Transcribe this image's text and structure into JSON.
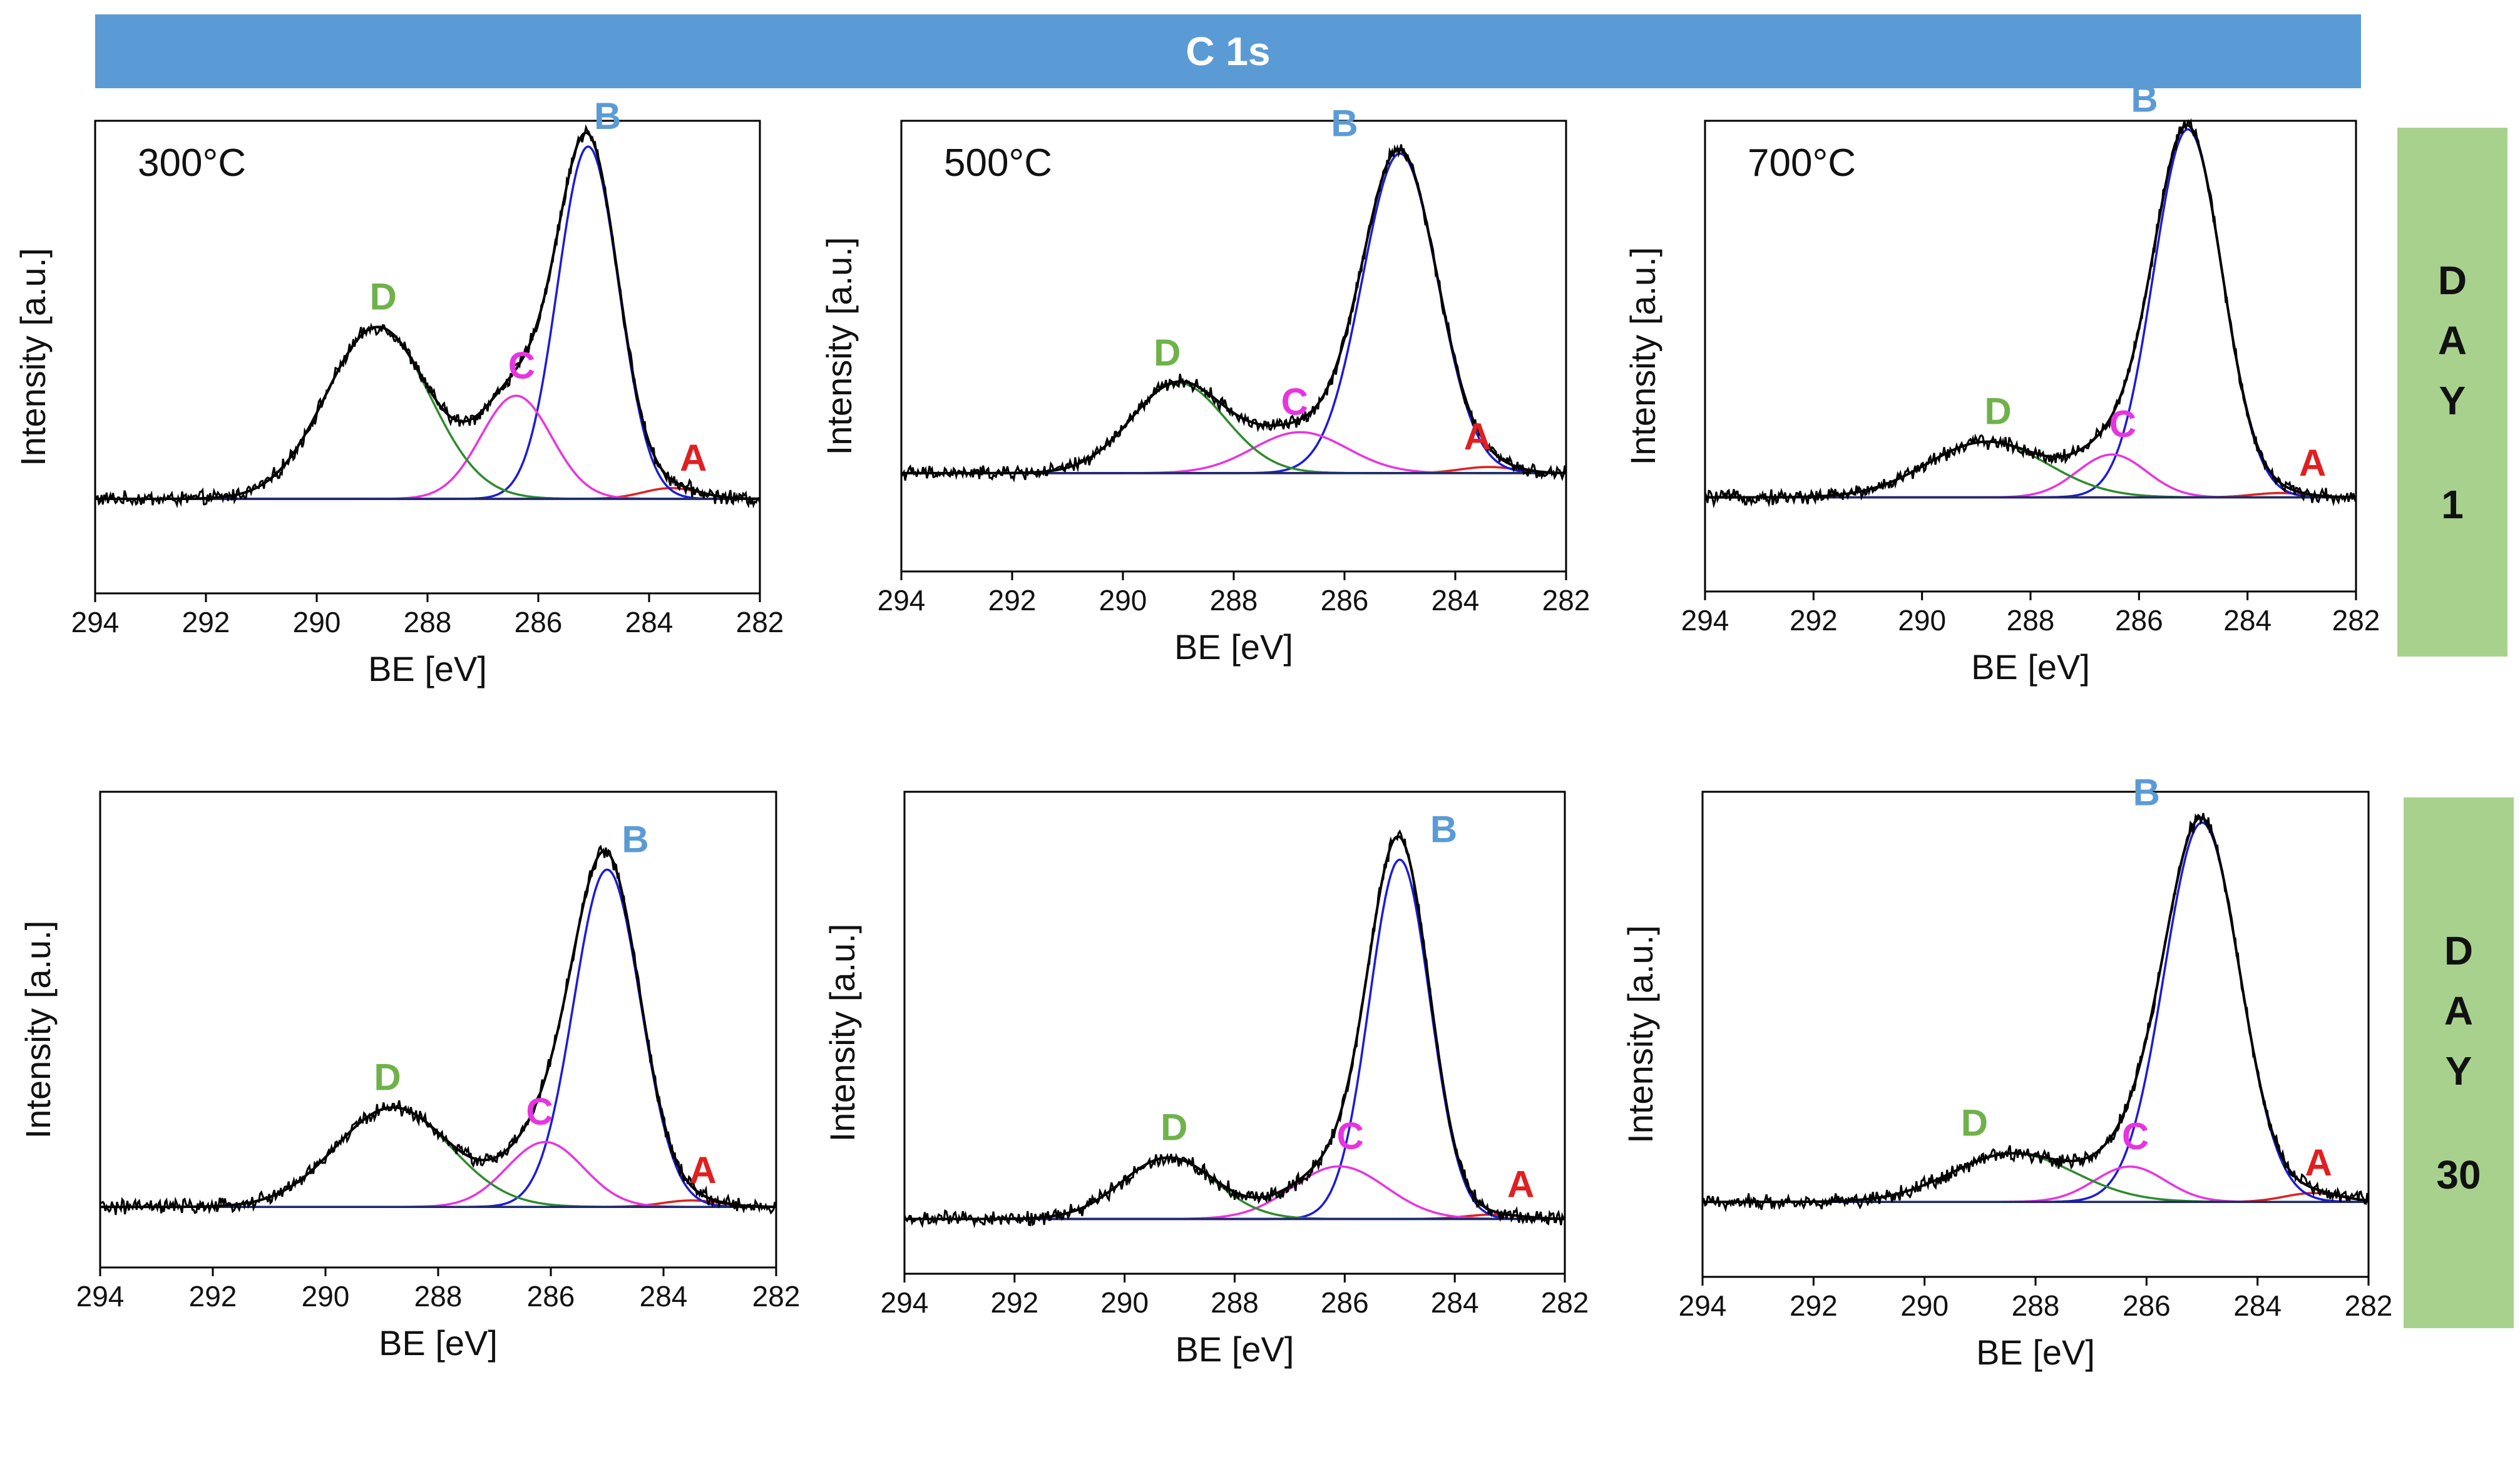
{
  "banner": {
    "title": "C 1s"
  },
  "row_labels": [
    {
      "letters": [
        "D",
        "A",
        "Y"
      ],
      "number": "1"
    },
    {
      "letters": [
        "D",
        "A",
        "Y"
      ],
      "number": "30"
    }
  ],
  "colors": {
    "banner": "#5b9bd5",
    "day_panel": "#a9d18e",
    "A": "#e02020",
    "B": "#1c1cd8",
    "C": "#e834e0",
    "D": "#2e8b2e",
    "label_A": "#e02020",
    "label_B": "#5b9bd5",
    "label_C": "#e834e0",
    "label_D": "#6fb24a",
    "baseline": "#1c2a6b",
    "data": "#000000"
  },
  "chart_data": [
    {
      "type": "line",
      "row": 0,
      "col": 0,
      "title": "300°C",
      "xlabel": "BE [eV]",
      "ylabel": "Intensity [a.u.]",
      "xlim": [
        294,
        282
      ],
      "ylim": [
        0,
        1.1
      ],
      "xticks": [
        "294",
        "292",
        "290",
        "288",
        "286",
        "284",
        "282"
      ],
      "baseline": 0.22,
      "components": [
        {
          "name": "A",
          "center": 283.6,
          "height": 0.025,
          "fwhm": 1.2,
          "label_x": 283.2
        },
        {
          "name": "B",
          "center": 285.1,
          "height": 0.82,
          "fwhm": 1.3,
          "label_x": 284.75
        },
        {
          "name": "C",
          "center": 286.4,
          "height": 0.24,
          "fwhm": 1.5,
          "label_x": 286.3
        },
        {
          "name": "D",
          "center": 288.9,
          "height": 0.4,
          "fwhm": 2.2,
          "label_x": 288.8
        }
      ]
    },
    {
      "type": "line",
      "row": 0,
      "col": 1,
      "title": "500°C",
      "xlabel": "BE [eV]",
      "ylabel": "Intensity [a.u.]",
      "xlim": [
        294,
        282
      ],
      "ylim": [
        0,
        1.1
      ],
      "xticks": [
        "294",
        "292",
        "290",
        "288",
        "286",
        "284",
        "282"
      ],
      "baseline": 0.24,
      "components": [
        {
          "name": "A",
          "center": 283.4,
          "height": 0.015,
          "fwhm": 1.2,
          "label_x": 283.6
        },
        {
          "name": "B",
          "center": 285.0,
          "height": 0.78,
          "fwhm": 1.6,
          "label_x": 286.0
        },
        {
          "name": "C",
          "center": 286.8,
          "height": 0.1,
          "fwhm": 2.0,
          "label_x": 286.9
        },
        {
          "name": "D",
          "center": 289.0,
          "height": 0.22,
          "fwhm": 2.0,
          "label_x": 289.2
        }
      ]
    },
    {
      "type": "line",
      "row": 0,
      "col": 2,
      "title": "700°C",
      "xlabel": "BE [eV]",
      "ylabel": "Intensity [a.u.]",
      "xlim": [
        294,
        282
      ],
      "ylim": [
        0,
        1.1
      ],
      "xticks": [
        "294",
        "292",
        "290",
        "288",
        "286",
        "284",
        "282"
      ],
      "baseline": 0.22,
      "components": [
        {
          "name": "A",
          "center": 283.4,
          "height": 0.01,
          "fwhm": 1.2,
          "label_x": 282.8
        },
        {
          "name": "B",
          "center": 285.1,
          "height": 0.86,
          "fwhm": 1.5,
          "label_x": 285.9
        },
        {
          "name": "C",
          "center": 286.5,
          "height": 0.1,
          "fwhm": 1.5,
          "label_x": 286.3
        },
        {
          "name": "D",
          "center": 288.8,
          "height": 0.13,
          "fwhm": 2.6,
          "label_x": 288.6
        }
      ]
    },
    {
      "type": "line",
      "row": 1,
      "col": 0,
      "title": "",
      "xlabel": "BE [eV]",
      "ylabel": "Intensity [a.u.]",
      "xlim": [
        294,
        282
      ],
      "ylim": [
        0,
        1.1
      ],
      "xticks": [
        "294",
        "292",
        "290",
        "288",
        "286",
        "284",
        "282"
      ],
      "baseline": 0.14,
      "components": [
        {
          "name": "A",
          "center": 283.5,
          "height": 0.015,
          "fwhm": 1.2,
          "label_x": 283.3
        },
        {
          "name": "B",
          "center": 285.0,
          "height": 0.78,
          "fwhm": 1.4,
          "label_x": 284.5
        },
        {
          "name": "C",
          "center": 286.1,
          "height": 0.15,
          "fwhm": 1.6,
          "label_x": 286.2
        },
        {
          "name": "D",
          "center": 288.8,
          "height": 0.23,
          "fwhm": 2.4,
          "label_x": 288.9
        }
      ]
    },
    {
      "type": "line",
      "row": 1,
      "col": 1,
      "title": "",
      "xlabel": "BE [eV]",
      "ylabel": "Intensity [a.u.]",
      "xlim": [
        294,
        282
      ],
      "ylim": [
        0,
        1.1
      ],
      "xticks": [
        "294",
        "292",
        "290",
        "288",
        "286",
        "284",
        "282"
      ],
      "baseline": 0.125,
      "components": [
        {
          "name": "A",
          "center": 283.3,
          "height": 0.01,
          "fwhm": 1.2,
          "label_x": 282.8
        },
        {
          "name": "B",
          "center": 285.0,
          "height": 0.82,
          "fwhm": 1.3,
          "label_x": 284.2
        },
        {
          "name": "C",
          "center": 286.1,
          "height": 0.12,
          "fwhm": 2.0,
          "label_x": 285.9
        },
        {
          "name": "D",
          "center": 289.2,
          "height": 0.14,
          "fwhm": 2.0,
          "label_x": 289.1
        }
      ]
    },
    {
      "type": "line",
      "row": 1,
      "col": 2,
      "title": "",
      "xlabel": "BE [eV]",
      "ylabel": "Intensity [a.u.]",
      "xlim": [
        294,
        282
      ],
      "ylim": [
        0,
        1.1
      ],
      "xticks": [
        "294",
        "292",
        "290",
        "288",
        "286",
        "284",
        "282"
      ],
      "baseline": 0.17,
      "components": [
        {
          "name": "A",
          "center": 283.0,
          "height": 0.02,
          "fwhm": 1.2,
          "label_x": 282.9
        },
        {
          "name": "B",
          "center": 285.0,
          "height": 0.86,
          "fwhm": 1.6,
          "label_x": 286.0
        },
        {
          "name": "C",
          "center": 286.3,
          "height": 0.08,
          "fwhm": 1.5,
          "label_x": 286.2
        },
        {
          "name": "D",
          "center": 288.4,
          "height": 0.11,
          "fwhm": 2.6,
          "label_x": 289.1
        }
      ]
    }
  ]
}
